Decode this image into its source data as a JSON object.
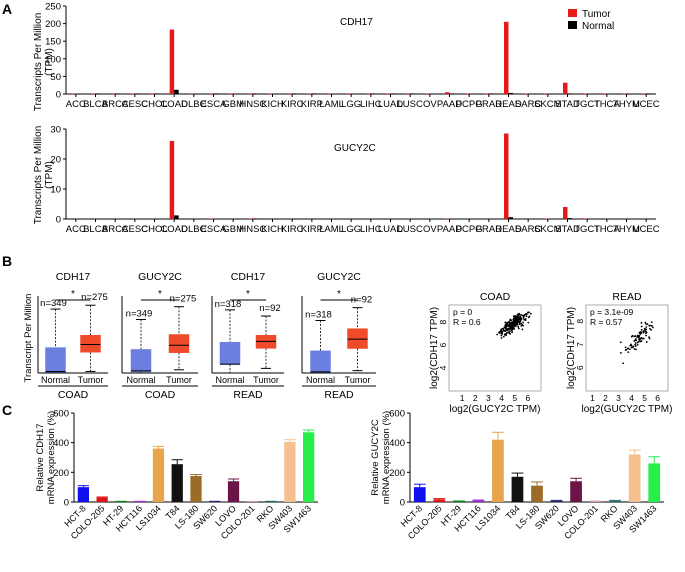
{
  "panels": {
    "A": {
      "label": "A",
      "ylabel_lines": [
        "Transcripts Per Million",
        "(TPM)"
      ],
      "legend": [
        {
          "name": "Tumor",
          "color": "#e8191b"
        },
        {
          "name": "Normal",
          "color": "#000000"
        }
      ]
    },
    "B": {
      "label": "B"
    },
    "C": {
      "label": "C"
    }
  },
  "colors": {
    "tumor": "#e8191b",
    "normal": "#000000",
    "box_normal": "#6b7fe0",
    "box_tumor": "#ef4a2a"
  },
  "chart_data": [
    {
      "id": "A1",
      "type": "bar",
      "title": "CDH17",
      "categories": [
        "ACC",
        "BLCA",
        "BRCA",
        "CESC",
        "CHOL",
        "COAD",
        "DLBC",
        "ESCA",
        "GBM",
        "HNSC",
        "KICH",
        "KIRC",
        "KIRP",
        "LAML",
        "LGG",
        "LIHC",
        "LUAD",
        "LUSC",
        "OV",
        "PAAD",
        "PCPG",
        "PRAD",
        "READ",
        "SARC",
        "SKCM",
        "STAD",
        "TGCT",
        "THCA",
        "THYM",
        "UCEC"
      ],
      "series": [
        {
          "name": "Tumor",
          "values": [
            0.2,
            0.3,
            0.2,
            0.3,
            0.4,
            183,
            0.1,
            1.5,
            0.1,
            0.2,
            0.1,
            0.2,
            0.2,
            0.1,
            0.1,
            0.2,
            0.3,
            0.2,
            0.2,
            5,
            0.1,
            0.2,
            205,
            0.2,
            0.1,
            32,
            0.2,
            0.1,
            0.1,
            1.2
          ]
        },
        {
          "name": "Normal",
          "values": [
            0,
            0.2,
            0.1,
            0.2,
            0.3,
            12,
            0,
            0.8,
            0,
            0.1,
            0,
            0.1,
            0.1,
            0,
            0,
            0.1,
            0.1,
            0.1,
            0,
            0.5,
            0,
            0.1,
            3,
            0,
            0,
            1,
            0,
            0,
            0,
            0.2
          ]
        }
      ],
      "ylim": [
        0,
        250
      ],
      "yticks": [
        0,
        50,
        100,
        150,
        200,
        250
      ],
      "ylabel": "Transcripts Per Million (TPM)"
    },
    {
      "id": "A2",
      "type": "bar",
      "title": "GUCY2C",
      "categories": [
        "ACC",
        "BLCA",
        "BRCA",
        "CESC",
        "CHOL",
        "COAD",
        "DLBC",
        "ESCA",
        "GBM",
        "HNSC",
        "KICH",
        "KIRC",
        "KIRP",
        "LAML",
        "LGG",
        "LIHC",
        "LUAD",
        "LUSC",
        "OV",
        "PAAD",
        "PCPG",
        "PRAD",
        "READ",
        "SARC",
        "SKCM",
        "STAD",
        "TGCT",
        "THCA",
        "THYM",
        "UCEC"
      ],
      "series": [
        {
          "name": "Tumor",
          "values": [
            0,
            0,
            0,
            0,
            0,
            26,
            0,
            0.1,
            0,
            0.2,
            0,
            0,
            0,
            0,
            0,
            0,
            0,
            0,
            0,
            0.1,
            0,
            0,
            28.5,
            0,
            0.1,
            4,
            0.1,
            0,
            0,
            0
          ]
        },
        {
          "name": "Normal",
          "values": [
            0,
            0,
            0,
            0,
            0,
            1.2,
            0,
            0,
            0,
            0.1,
            0,
            0,
            0,
            0,
            0,
            0,
            0,
            0,
            0,
            0,
            0,
            0,
            0.6,
            0,
            0,
            0.3,
            0,
            0,
            0,
            0
          ]
        }
      ],
      "ylim": [
        0,
        30
      ],
      "yticks": [
        0,
        10,
        20,
        30
      ],
      "ylabel": "Transcripts Per Million (TPM)"
    },
    {
      "id": "B1",
      "type": "box",
      "title": "CDH17",
      "group": "COAD",
      "ylabel": "Transcript Per Million",
      "significance": "*",
      "boxes": [
        {
          "label": "Normal",
          "n": "n=349",
          "min": 0,
          "q1": 5,
          "median": 10,
          "q3": 165,
          "max": 415
        },
        {
          "label": "Tumor",
          "n": "n=275",
          "min": 10,
          "q1": 135,
          "median": 185,
          "q3": 245,
          "max": 440
        }
      ],
      "ylim": [
        0,
        500
      ]
    },
    {
      "id": "B2",
      "type": "box",
      "title": "GUCY2C",
      "group": "COAD",
      "significance": "*",
      "boxes": [
        {
          "label": "Normal",
          "n": "n=349",
          "min": 0,
          "q1": 1,
          "median": 2,
          "q3": 22,
          "max": 50
        },
        {
          "label": "Tumor",
          "n": "n=275",
          "min": 3,
          "q1": 19,
          "median": 26,
          "q3": 36,
          "max": 62
        }
      ],
      "ylim": [
        0,
        72
      ]
    },
    {
      "id": "B3",
      "type": "box",
      "title": "CDH17",
      "group": "READ",
      "significance": "*",
      "boxes": [
        {
          "label": "Normal",
          "n": "n=318",
          "min": 0,
          "q1": 55,
          "median": 58,
          "q3": 200,
          "max": 410
        },
        {
          "label": "Tumor",
          "n": "n=92",
          "min": 30,
          "q1": 160,
          "median": 205,
          "q3": 245,
          "max": 370
        }
      ],
      "ylim": [
        0,
        500
      ]
    },
    {
      "id": "B4",
      "type": "box",
      "title": "GUCY2C",
      "group": "READ",
      "significance": "*",
      "boxes": [
        {
          "label": "Normal",
          "n": "n=318",
          "min": 0,
          "q1": 0.5,
          "median": 1,
          "q3": 19,
          "max": 45
        },
        {
          "label": "Tumor",
          "n": "n=92",
          "min": 2,
          "q1": 21,
          "median": 29,
          "q3": 38,
          "max": 56
        }
      ],
      "ylim": [
        0,
        66
      ]
    },
    {
      "id": "B5",
      "type": "scatter",
      "title": "COAD",
      "stats": [
        "p = 0",
        "R = 0.6"
      ],
      "xlabel": "log2(GUCY2C TPM)",
      "ylabel": "log2(CDH17 TPM)",
      "xticks": [
        1,
        2,
        3,
        4,
        5,
        6
      ],
      "yticks": [
        4,
        6,
        8
      ],
      "xlim": [
        0,
        7
      ],
      "ylim": [
        2,
        9.5
      ]
    },
    {
      "id": "B6",
      "type": "scatter",
      "title": "READ",
      "stats": [
        "p = 3.1e-09",
        "R = 0.57"
      ],
      "xlabel": "log2(GUCY2C TPM)",
      "ylabel": "log2(CDH17 TPM)",
      "xticks": [
        1,
        2,
        3,
        4,
        5,
        6
      ],
      "yticks": [
        6,
        7,
        8
      ],
      "xlim": [
        0.5,
        6.8
      ],
      "ylim": [
        5,
        8.7
      ]
    },
    {
      "id": "C1",
      "type": "bar",
      "title": "",
      "ylabel": "Relative CDH17 mRNA expression (%)",
      "categories": [
        "HCT-8",
        "COLO-205",
        "HT-29",
        "HCT116",
        "LS1034",
        "T84",
        "LS-180",
        "SW620",
        "LOVO",
        "COLO-201",
        "RKO",
        "SW403",
        "SW1463"
      ],
      "values": [
        100,
        30,
        1,
        3,
        360,
        255,
        175,
        2,
        140,
        1,
        2,
        405,
        470
      ],
      "errors": [
        10,
        4,
        0,
        0,
        15,
        30,
        10,
        0,
        15,
        0,
        0,
        15,
        15
      ],
      "colors": [
        "#1010ee",
        "#e01414",
        "#0a8a1a",
        "#9b30d8",
        "#e8a44a",
        "#111111",
        "#9c6b27",
        "#202a70",
        "#6b1547",
        "#d8a3b8",
        "#20706f",
        "#f5c08f",
        "#26ee4a"
      ],
      "ylim": [
        0,
        600
      ],
      "yticks": [
        0,
        200,
        400,
        600
      ]
    },
    {
      "id": "C2",
      "type": "bar",
      "title": "",
      "ylabel": "Relative GUCY2C mRNA expression (%)",
      "categories": [
        "HCT-8",
        "COLO-205",
        "HT-29",
        "HCT116",
        "LS1034",
        "T84",
        "LS-180",
        "SW620",
        "LOVO",
        "COLO-201",
        "RKO",
        "SW403",
        "SW1463"
      ],
      "values": [
        100,
        18,
        5,
        10,
        420,
        170,
        110,
        8,
        140,
        5,
        8,
        320,
        260
      ],
      "errors": [
        20,
        5,
        2,
        3,
        50,
        25,
        25,
        3,
        20,
        2,
        3,
        30,
        45
      ],
      "colors": [
        "#1010ee",
        "#e01414",
        "#0a8a1a",
        "#9b30d8",
        "#e8a44a",
        "#111111",
        "#9c6b27",
        "#202a70",
        "#6b1547",
        "#d8a3b8",
        "#20706f",
        "#f5c08f",
        "#26ee4a"
      ],
      "ylim": [
        0,
        600
      ],
      "yticks": [
        0,
        200,
        400,
        600
      ]
    }
  ]
}
